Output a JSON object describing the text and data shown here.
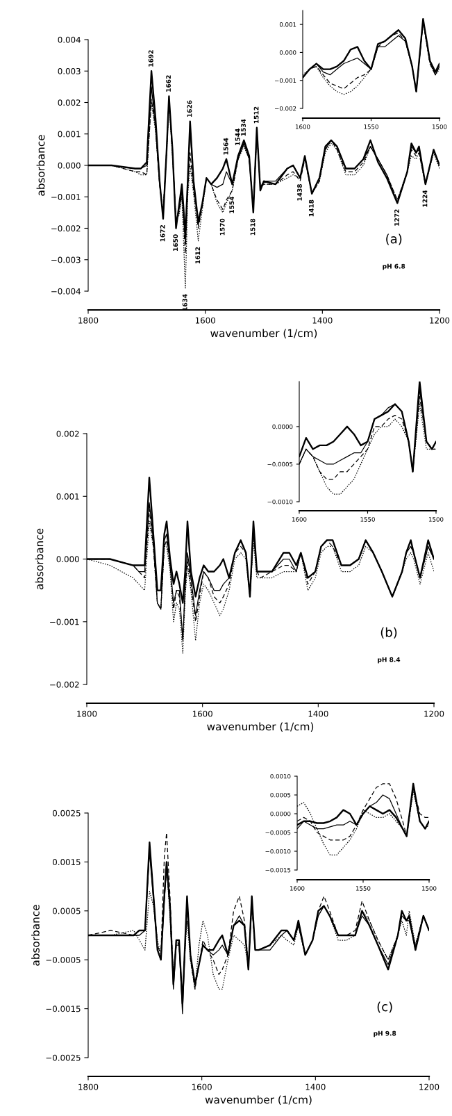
{
  "chart_data": [
    {
      "type": "line",
      "xlabel": "wavenumber (1/cm)",
      "ylabel": "absorbance",
      "xlim": [
        1800,
        1200
      ],
      "xticks": [
        1800,
        1600,
        1400,
        1200
      ],
      "ylim": [
        -0.004,
        0.004
      ],
      "yticks": [
        {
          "value": 0.004,
          "label": "0.004"
        },
        {
          "value": 0.003,
          "label": "0.003"
        },
        {
          "value": 0.002,
          "label": "0.002"
        },
        {
          "value": 0.001,
          "label": "0.001"
        },
        {
          "value": 0,
          "label": "0.000"
        },
        {
          "value": -0.001,
          "label": "−0.001"
        },
        {
          "value": -0.002,
          "label": "−0.002"
        },
        {
          "value": -0.003,
          "label": "−0.003"
        },
        {
          "value": -0.004,
          "label": "−0.004"
        }
      ],
      "x": [
        1800,
        1760,
        1720,
        1710,
        1700,
        1692,
        1685,
        1678,
        1672,
        1666,
        1662,
        1656,
        1650,
        1645,
        1640,
        1634,
        1630,
        1626,
        1620,
        1612,
        1605,
        1598,
        1590,
        1580,
        1570,
        1564,
        1554,
        1544,
        1534,
        1525,
        1518,
        1512,
        1506,
        1500,
        1480,
        1460,
        1450,
        1438,
        1430,
        1418,
        1405,
        1395,
        1385,
        1375,
        1360,
        1345,
        1330,
        1318,
        1305,
        1290,
        1272,
        1255,
        1248,
        1240,
        1235,
        1224,
        1210,
        1200
      ],
      "series": [
        {
          "color": "#000000",
          "line_style": "solid",
          "values": [
            0,
            0,
            -0.0001,
            -0.0001,
            0.0001,
            0.003,
            0.0015,
            -0.0005,
            -0.0017,
            0.0005,
            0.0022,
            0.0005,
            -0.002,
            -0.0013,
            -0.0006,
            -0.0022,
            -0.0005,
            0.0014,
            -0.0005,
            -0.0018,
            -0.0012,
            -0.0004,
            -0.0006,
            -0.0004,
            -0.0001,
            0.0002,
            -0.0006,
            0.0003,
            0.0008,
            0.0003,
            -0.0015,
            0.0012,
            -0.0008,
            -0.0005,
            -0.0006,
            -0.0001,
            0,
            -0.0004,
            0.0003,
            -0.0009,
            -0.0004,
            0.0006,
            0.0008,
            0.0006,
            -0.0001,
            -0.0001,
            0.0002,
            0.0008,
            0.0001,
            -0.0004,
            -0.0012,
            -0.0002,
            0.0007,
            0.0004,
            0.0006,
            -0.0006,
            0.0005,
            0
          ]
        },
        {
          "color": "#000000",
          "line_style": "solid",
          "values": [
            0,
            0,
            -0.0001,
            -0.0001,
            0,
            0.0025,
            0.0012,
            -0.0006,
            -0.0016,
            0.0005,
            0.0021,
            0.0004,
            -0.0018,
            -0.0014,
            -0.0008,
            -0.0025,
            -0.0006,
            0.0012,
            -0.0006,
            -0.0019,
            -0.0012,
            -0.0004,
            -0.0006,
            -0.0007,
            -0.0006,
            -0.0002,
            -0.0006,
            0.0002,
            0.0007,
            0.0002,
            -0.0014,
            0.0011,
            -0.0007,
            -0.0005,
            -0.0005,
            -0.0001,
            0,
            -0.0004,
            0.0003,
            -0.0009,
            -0.0004,
            0.0005,
            0.0008,
            0.0006,
            -0.0001,
            -0.0001,
            0.0002,
            0.0006,
            0.0002,
            -0.0003,
            -0.0012,
            -0.0002,
            0.0006,
            0.0004,
            0.0005,
            -0.0006,
            0.0005,
            0
          ]
        },
        {
          "color": "#000000",
          "line_style": "dashed",
          "values": [
            0,
            0,
            -0.0002,
            -0.0002,
            -0.0003,
            0.0021,
            0.0012,
            -0.0006,
            -0.0015,
            0.0005,
            0.0021,
            0.0004,
            -0.0018,
            -0.0015,
            -0.0009,
            -0.0028,
            -0.0008,
            0.0004,
            -0.0008,
            -0.002,
            -0.0013,
            -0.0004,
            -0.0006,
            -0.0011,
            -0.0014,
            -0.0011,
            -0.0008,
            0.0002,
            0.0007,
            0.0002,
            -0.0014,
            0.0011,
            -0.0007,
            -0.0006,
            -0.0006,
            -0.0003,
            -0.0002,
            -0.0005,
            0.0002,
            -0.0009,
            -0.0005,
            0.0005,
            0.0008,
            0.0005,
            -0.0002,
            -0.0002,
            0.0001,
            0.0006,
            0.0002,
            -0.0003,
            -0.0011,
            -0.0002,
            0.0005,
            0.0003,
            0.0004,
            -0.0006,
            0.0005,
            0
          ]
        },
        {
          "color": "#000000",
          "line_style": "dotted",
          "values": [
            0,
            0,
            -0.0002,
            -0.0003,
            -0.0003,
            0.002,
            0.0011,
            -0.0006,
            -0.0015,
            0.0004,
            0.002,
            0.0003,
            -0.0017,
            -0.0016,
            -0.001,
            -0.0039,
            -0.001,
            0,
            -0.0009,
            -0.0024,
            -0.0014,
            -0.0004,
            -0.0006,
            -0.0012,
            -0.0015,
            -0.0012,
            -0.0008,
            0.0002,
            0.0006,
            0.0002,
            -0.0014,
            0.001,
            -0.0007,
            -0.0006,
            -0.0006,
            -0.0004,
            -0.0003,
            -0.0004,
            0.0002,
            -0.0009,
            -0.0005,
            0.0004,
            0.0007,
            0.0005,
            -0.0003,
            -0.0003,
            0,
            0.0006,
            0.0002,
            -0.0003,
            -0.0011,
            -0.0002,
            0.0003,
            0.0002,
            0.0004,
            -0.0006,
            0.0004,
            -0.0001
          ]
        }
      ],
      "annotations": [
        {
          "text": "1692",
          "x": 1692,
          "y": 0.003
        },
        {
          "text": "1662",
          "x": 1662,
          "y": 0.0022
        },
        {
          "text": "1626",
          "x": 1626,
          "y": 0.0014
        },
        {
          "text": "1564",
          "x": 1564,
          "y": 0.0002
        },
        {
          "text": "1544",
          "x": 1544,
          "y": 0.0005
        },
        {
          "text": "1534",
          "x": 1534,
          "y": 0.0008
        },
        {
          "text": "1512",
          "x": 1512,
          "y": 0.0012
        },
        {
          "text": "1672",
          "x": 1672,
          "y": -0.0017
        },
        {
          "text": "1650",
          "x": 1650,
          "y": -0.002
        },
        {
          "text": "1634",
          "x": 1634,
          "y": -0.0039
        },
        {
          "text": "1612",
          "x": 1612,
          "y": -0.0024
        },
        {
          "text": "1570",
          "x": 1570,
          "y": -0.0015
        },
        {
          "text": "1554",
          "x": 1554,
          "y": -0.0008
        },
        {
          "text": "1518",
          "x": 1518,
          "y": -0.0015
        },
        {
          "text": "1438",
          "x": 1438,
          "y": -0.0004
        },
        {
          "text": "1418",
          "x": 1418,
          "y": -0.0009
        },
        {
          "text": "1272",
          "x": 1272,
          "y": -0.0012
        },
        {
          "text": "1224",
          "x": 1224,
          "y": -0.0006
        },
        "(a)",
        "pH 6.8"
      ]
    },
    {
      "type": "line",
      "xlim": [
        1600,
        1500
      ],
      "xticks": [
        1600,
        1550,
        1500
      ],
      "ylim": [
        -0.002,
        0.0015
      ],
      "yticks": [
        {
          "value": 0.001,
          "label": "0.001"
        },
        {
          "value": 0,
          "label": "0.000"
        },
        {
          "value": -0.001,
          "label": "−0.001"
        },
        {
          "value": -0.002,
          "label": "−0.002"
        }
      ],
      "x": [
        1600,
        1595,
        1590,
        1585,
        1580,
        1575,
        1570,
        1565,
        1560,
        1555,
        1550,
        1545,
        1540,
        1535,
        1530,
        1525,
        1520,
        1517,
        1512,
        1507,
        1503,
        1500
      ],
      "series": [
        {
          "color": "#000000",
          "line_style": "solid",
          "values": [
            -0.0009,
            -0.0006,
            -0.0004,
            -0.0006,
            -0.0006,
            -0.0005,
            -0.0003,
            0.0001,
            0.0002,
            -0.0003,
            -0.0006,
            0.0003,
            0.0004,
            0.0006,
            0.0008,
            0.0005,
            -0.0005,
            -0.0014,
            0.0012,
            -0.0003,
            -0.0007,
            -0.0004
          ]
        },
        {
          "color": "#000000",
          "line_style": "solid",
          "values": [
            -0.0009,
            -0.0006,
            -0.0004,
            -0.0007,
            -0.0008,
            -0.0006,
            -0.0004,
            -0.0003,
            -0.0002,
            -0.0004,
            -0.0006,
            0.0002,
            0.0002,
            0.0004,
            0.0006,
            0.0004,
            -0.0005,
            -0.0014,
            0.0011,
            -0.0003,
            -0.0008,
            -0.0005
          ]
        },
        {
          "color": "#000000",
          "line_style": "dashed",
          "values": [
            -0.0009,
            -0.0006,
            -0.0005,
            -0.0008,
            -0.0011,
            -0.0012,
            -0.0013,
            -0.0011,
            -0.0009,
            -0.0008,
            -0.0006,
            0.0002,
            0.0004,
            0.0006,
            0.0007,
            0.0004,
            -0.0005,
            -0.0014,
            0.0011,
            -0.0004,
            -0.0008,
            -0.0005
          ]
        },
        {
          "color": "#000000",
          "line_style": "dotted",
          "values": [
            -0.0008,
            -0.0006,
            -0.0005,
            -0.0009,
            -0.0012,
            -0.0014,
            -0.0015,
            -0.0014,
            -0.0012,
            -0.0009,
            -0.0006,
            0.0003,
            0.0004,
            0.0006,
            0.0008,
            0.0005,
            -0.0005,
            -0.0014,
            0.0011,
            -0.0004,
            -0.0008,
            -0.0006
          ]
        }
      ]
    },
    {
      "type": "line",
      "xlabel": "wavenumber (1/cm)",
      "ylabel": "absorbance",
      "xlim": [
        1800,
        1200
      ],
      "xticks": [
        1800,
        1600,
        1400,
        1200
      ],
      "ylim": [
        -0.002,
        0.002
      ],
      "yticks": [
        {
          "value": 0.002,
          "label": "0.002"
        },
        {
          "value": 0.001,
          "label": "0.001"
        },
        {
          "value": 0,
          "label": "0.000"
        },
        {
          "value": -0.001,
          "label": "−0.001"
        },
        {
          "value": -0.002,
          "label": "−0.002"
        }
      ],
      "x": [
        1800,
        1760,
        1720,
        1710,
        1700,
        1692,
        1685,
        1678,
        1672,
        1666,
        1662,
        1656,
        1650,
        1645,
        1640,
        1634,
        1630,
        1626,
        1620,
        1612,
        1605,
        1598,
        1590,
        1580,
        1570,
        1564,
        1554,
        1544,
        1534,
        1525,
        1518,
        1512,
        1506,
        1500,
        1480,
        1460,
        1450,
        1438,
        1430,
        1418,
        1405,
        1395,
        1385,
        1375,
        1360,
        1345,
        1330,
        1318,
        1305,
        1290,
        1272,
        1255,
        1248,
        1240,
        1235,
        1224,
        1210,
        1200
      ],
      "series": [
        {
          "color": "#000000",
          "line_style": "solid",
          "values": [
            0,
            0,
            -0.0001,
            -0.0001,
            -0.0001,
            0.0013,
            0.0004,
            -0.0005,
            -0.0005,
            0.0004,
            0.0006,
            0,
            -0.0004,
            -0.0002,
            -0.0004,
            -0.0007,
            -0.0002,
            0.0006,
            -0.0002,
            -0.0006,
            -0.0003,
            -0.0001,
            -0.0002,
            -0.0002,
            -0.0001,
            0,
            -0.0003,
            0.0001,
            0.0003,
            0.0001,
            -0.0006,
            0.0006,
            -0.0002,
            -0.0002,
            -0.0002,
            0.0001,
            0.0001,
            -0.0001,
            0.0001,
            -0.0003,
            -0.0002,
            0.0002,
            0.0003,
            0.0003,
            -0.0001,
            -0.0001,
            0,
            0.0003,
            0.0001,
            -0.0002,
            -0.0006,
            -0.0002,
            0.0001,
            0.0003,
            0.0001,
            -0.0003,
            0.0003,
            0
          ]
        },
        {
          "color": "#000000",
          "line_style": "solid",
          "values": [
            0,
            0,
            -0.0001,
            -0.0002,
            -0.0002,
            0.0009,
            0.0003,
            -0.0007,
            -0.0008,
            0.0003,
            0.0004,
            -0.0001,
            -0.0007,
            -0.0005,
            -0.0005,
            -0.0013,
            -0.0004,
            0.0001,
            -0.0003,
            -0.0009,
            -0.0005,
            -0.0002,
            -0.0003,
            -0.0005,
            -0.0005,
            -0.0004,
            -0.0003,
            0.0001,
            0.0003,
            0.0001,
            -0.0006,
            0.0005,
            -0.0002,
            -0.0002,
            -0.0002,
            0,
            0,
            -0.0002,
            0.0001,
            -0.0003,
            -0.0002,
            0.0002,
            0.0003,
            0.0003,
            -0.0001,
            -0.0001,
            0,
            0.0003,
            0.0001,
            -0.0002,
            -0.0006,
            -0.0002,
            0.0001,
            0.0002,
            0.0001,
            -0.0003,
            0.0002,
            0
          ]
        },
        {
          "color": "#000000",
          "line_style": "dashed",
          "values": [
            0,
            0,
            -0.0001,
            -0.0002,
            -0.0003,
            0.0008,
            0.0002,
            -0.0007,
            -0.0008,
            0.0002,
            0.0003,
            -0.0001,
            -0.0008,
            -0.0005,
            -0.0006,
            -0.0013,
            -0.0005,
            0,
            -0.0004,
            -0.001,
            -0.0006,
            -0.0002,
            -0.0003,
            -0.0006,
            -0.0007,
            -0.0006,
            -0.0004,
            0.0001,
            0.0002,
            0.0001,
            -0.0006,
            0.0004,
            -0.0002,
            -0.0003,
            -0.0002,
            -0.0001,
            -0.0001,
            -0.0002,
            0.0001,
            -0.0004,
            -0.0002,
            0.0002,
            0.0003,
            0.0002,
            -0.0001,
            -0.0001,
            0,
            0.0003,
            0.0001,
            -0.0002,
            -0.0006,
            -0.0002,
            0.0001,
            0.0002,
            0.0001,
            -0.0003,
            0.0002,
            0
          ]
        },
        {
          "color": "#000000",
          "line_style": "dotted",
          "values": [
            0,
            -0.0001,
            -0.0003,
            -0.0004,
            -0.0005,
            0.0006,
            0.0002,
            -0.0007,
            -0.0008,
            0.0002,
            0.0002,
            -0.0002,
            -0.001,
            -0.0007,
            -0.0008,
            -0.0015,
            -0.0006,
            -0.0001,
            -0.0005,
            -0.0013,
            -0.0007,
            -0.0004,
            -0.0005,
            -0.0007,
            -0.0009,
            -0.0008,
            -0.0005,
            0,
            0.0001,
            0,
            -0.0006,
            0.0003,
            -0.0003,
            -0.0003,
            -0.0003,
            -0.0002,
            -0.0002,
            -0.0002,
            0.0001,
            -0.0005,
            -0.0003,
            0.0001,
            0.0002,
            0.0002,
            -0.0002,
            -0.0002,
            -0.0001,
            0.0002,
            0.0001,
            -0.0002,
            -0.0006,
            -0.0002,
            0,
            0.0001,
            0,
            -0.0004,
            0.0001,
            -0.0002
          ]
        }
      ],
      "annotations": [
        "(b)",
        "pH 8.4"
      ]
    },
    {
      "type": "line",
      "xlim": [
        1600,
        1500
      ],
      "xticks": [
        1600,
        1550,
        1500
      ],
      "ylim": [
        -0.001,
        0.0006
      ],
      "yticks": [
        {
          "value": 0,
          "label": "0.0000"
        },
        {
          "value": -0.0005,
          "label": "−0.0005"
        },
        {
          "value": -0.001,
          "label": "−0.0010"
        }
      ],
      "x": [
        1600,
        1595,
        1590,
        1585,
        1580,
        1575,
        1570,
        1565,
        1560,
        1555,
        1550,
        1545,
        1540,
        1535,
        1530,
        1525,
        1520,
        1517,
        1512,
        1507,
        1503,
        1500
      ],
      "series": [
        {
          "color": "#000000",
          "line_style": "solid",
          "values": [
            -0.0004,
            -0.00015,
            -0.0003,
            -0.00025,
            -0.00025,
            -0.0002,
            -0.0001,
            0,
            -0.0001,
            -0.00025,
            -0.0002,
            0.0001,
            0.00015,
            0.0002,
            0.0003,
            0.0002,
            -0.0002,
            -0.0006,
            0.0006,
            -0.0002,
            -0.0003,
            -0.0002
          ]
        },
        {
          "color": "#000000",
          "line_style": "solid",
          "values": [
            -0.0005,
            -0.0003,
            -0.0004,
            -0.00045,
            -0.0005,
            -0.0005,
            -0.00045,
            -0.0004,
            -0.00035,
            -0.00035,
            -0.0002,
            0.0001,
            0.00015,
            0.00025,
            0.0003,
            0.0002,
            -0.0002,
            -0.0006,
            0.0005,
            -0.0002,
            -0.0003,
            -0.0002
          ]
        },
        {
          "color": "#000000",
          "line_style": "dashed",
          "values": [
            -0.0005,
            -0.0003,
            -0.0004,
            -0.0006,
            -0.0007,
            -0.0007,
            -0.0006,
            -0.0006,
            -0.0005,
            -0.0004,
            -0.0003,
            0,
            0,
            0.0001,
            0.00015,
            0.0001,
            -0.0002,
            -0.0006,
            0.0004,
            -0.0002,
            -0.0003,
            -0.0003
          ]
        },
        {
          "color": "#000000",
          "line_style": "dotted",
          "values": [
            -0.0005,
            -0.0003,
            -0.0004,
            -0.0006,
            -0.0008,
            -0.0009,
            -0.0009,
            -0.0008,
            -0.0007,
            -0.0005,
            -0.0003,
            -0.0001,
            0,
            0,
            0.0001,
            0,
            -0.0002,
            -0.0006,
            0.0003,
            -0.0003,
            -0.0003,
            -0.0003
          ]
        }
      ]
    },
    {
      "type": "line",
      "xlabel": "wavenumber (1/cm)",
      "ylabel": "absorbance",
      "xlim": [
        1800,
        1200
      ],
      "xticks": [
        1800,
        1600,
        1400,
        1200
      ],
      "ylim": [
        -0.0025,
        0.0025
      ],
      "yticks": [
        {
          "value": 0.0025,
          "label": "0.0025"
        },
        {
          "value": 0.0015,
          "label": "0.0015"
        },
        {
          "value": 0.0005,
          "label": "0.0005"
        },
        {
          "value": -0.0005,
          "label": "−0.0005"
        },
        {
          "value": -0.0015,
          "label": "−0.0015"
        },
        {
          "value": -0.0025,
          "label": "−0.0025"
        }
      ],
      "x": [
        1800,
        1760,
        1720,
        1710,
        1700,
        1692,
        1685,
        1678,
        1672,
        1666,
        1662,
        1656,
        1650,
        1645,
        1640,
        1634,
        1630,
        1626,
        1620,
        1612,
        1605,
        1598,
        1590,
        1580,
        1570,
        1564,
        1554,
        1544,
        1534,
        1525,
        1518,
        1512,
        1506,
        1500,
        1480,
        1460,
        1450,
        1438,
        1430,
        1418,
        1405,
        1395,
        1385,
        1375,
        1360,
        1345,
        1330,
        1318,
        1305,
        1290,
        1272,
        1255,
        1248,
        1240,
        1235,
        1224,
        1210,
        1200
      ],
      "series": [
        {
          "color": "#000000",
          "line_style": "solid",
          "values": [
            0,
            0,
            0,
            0.0001,
            0.0001,
            0.0019,
            0.0008,
            -0.0003,
            -0.0005,
            0.0008,
            0.0015,
            0.0006,
            -0.001,
            -0.0001,
            -0.0001,
            -0.0014,
            -0.0003,
            0.0008,
            -0.0004,
            -0.001,
            -0.0006,
            -0.0002,
            -0.0003,
            -0.0003,
            -0.0001,
            0,
            -0.0004,
            0.0002,
            0.0003,
            0.0002,
            -0.0007,
            0.0008,
            -0.0003,
            -0.0003,
            -0.0002,
            0.0001,
            0.0001,
            -0.0001,
            0.0003,
            -0.0004,
            -0.0001,
            0.0005,
            0.0006,
            0.0004,
            0,
            0,
            0,
            0.0005,
            0.0002,
            -0.0002,
            -0.0007,
            0,
            0.0005,
            0.0003,
            0.0004,
            -0.0003,
            0.0004,
            0.0001
          ]
        },
        {
          "color": "#000000",
          "line_style": "solid",
          "values": [
            0,
            0,
            0,
            0,
            0.0001,
            0.0017,
            0.0007,
            -0.0003,
            -0.0005,
            0.0007,
            0.0014,
            0.0005,
            -0.0011,
            -0.0002,
            -0.0002,
            -0.0016,
            -0.0004,
            0.0006,
            -0.0004,
            -0.001,
            -0.0006,
            -0.0002,
            -0.0003,
            -0.0004,
            -0.0003,
            -0.0002,
            -0.0004,
            0.0002,
            0.0004,
            0.0002,
            -0.0007,
            0.0007,
            -0.0003,
            -0.0003,
            -0.0003,
            0,
            0.0001,
            -0.0001,
            0.0002,
            -0.0004,
            -0.0001,
            0.0004,
            0.0006,
            0.0004,
            0,
            0,
            0,
            0.0004,
            0.0002,
            -0.0002,
            -0.0006,
            0,
            0.0004,
            0.0003,
            0.0003,
            -0.0003,
            0.0004,
            0.0001
          ]
        },
        {
          "color": "#000000",
          "line_style": "dashed",
          "values": [
            0,
            0.0001,
            0,
            0.0001,
            0.0001,
            0.0018,
            0.0008,
            -0.0002,
            -0.0004,
            0.0016,
            0.0021,
            0.0008,
            -0.0009,
            -0.0001,
            -0.0002,
            -0.0013,
            -0.0003,
            0.0006,
            -0.0005,
            -0.0011,
            -0.0006,
            -0.0001,
            -0.0003,
            -0.0005,
            -0.0008,
            -0.0007,
            -0.0004,
            0.0005,
            0.0008,
            0.0003,
            -0.0006,
            0.0006,
            -0.0003,
            -0.0003,
            -0.0002,
            0.0001,
            0.0001,
            -0.0001,
            0.0002,
            -0.0004,
            -0.0001,
            0.0005,
            0.0008,
            0.0005,
            0,
            0,
            0.0001,
            0.0007,
            0.0003,
            -0.0001,
            -0.0005,
            0,
            0.0004,
            0.0003,
            0.0003,
            -0.0002,
            0.0004,
            0.0001
          ]
        },
        {
          "color": "#000000",
          "line_style": "dotted",
          "values": [
            0,
            0,
            0.0001,
            -0.0001,
            -0.0003,
            0.0009,
            0.0006,
            -0.0001,
            -0.0004,
            0.0008,
            0.0014,
            0.0004,
            -0.0009,
            -0.0002,
            -0.0002,
            -0.0013,
            -0.0004,
            0.0003,
            -0.0005,
            -0.0011,
            -0.0002,
            0.0003,
            0,
            -0.0008,
            -0.0011,
            -0.0011,
            -0.0005,
            0,
            -0.0001,
            -0.0002,
            -0.0006,
            0.0007,
            -0.0003,
            -0.0003,
            -0.0002,
            0,
            -0.0001,
            -0.0002,
            0.0002,
            -0.0004,
            -0.0001,
            0.0004,
            0.0006,
            0.0004,
            -0.0001,
            -0.0001,
            0,
            0.0005,
            0.0003,
            -0.0001,
            -0.0005,
            0,
            0.0003,
            0,
            0.0005,
            -0.0002,
            0.0004,
            0.0001
          ]
        }
      ],
      "annotations": [
        "(c)",
        "pH 9.8"
      ]
    },
    {
      "type": "line",
      "xlim": [
        1600,
        1500
      ],
      "xticks": [
        1600,
        1550,
        1500
      ],
      "ylim": [
        -0.0015,
        0.001
      ],
      "yticks": [
        {
          "value": 0.001,
          "label": "0.0010"
        },
        {
          "value": 0.0005,
          "label": "0.0005"
        },
        {
          "value": 0,
          "label": "0.0000"
        },
        {
          "value": -0.0005,
          "label": "−0.0005"
        },
        {
          "value": -0.001,
          "label": "−0.0010"
        },
        {
          "value": -0.0015,
          "label": "−0.0015"
        }
      ],
      "x": [
        1600,
        1595,
        1590,
        1585,
        1580,
        1575,
        1570,
        1565,
        1560,
        1555,
        1550,
        1545,
        1540,
        1535,
        1530,
        1525,
        1520,
        1517,
        1512,
        1507,
        1503,
        1500
      ],
      "series": [
        {
          "color": "#000000",
          "line_style": "solid",
          "values": [
            -0.0003,
            -0.0002,
            -0.0002,
            -0.00025,
            -0.00025,
            -0.0002,
            -0.0001,
            0.0001,
            0,
            -0.0003,
            0,
            0.0002,
            0.0001,
            0,
            0.0001,
            -0.0001,
            -0.0004,
            -0.0006,
            0.0008,
            -0.0002,
            -0.0004,
            -0.0002
          ]
        },
        {
          "color": "#000000",
          "line_style": "solid",
          "values": [
            -0.0004,
            -0.0002,
            -0.0003,
            -0.0004,
            -0.0004,
            -0.00035,
            -0.0003,
            -0.0003,
            -0.0002,
            -0.0003,
            0,
            0.0002,
            0.0003,
            0.0005,
            0.0004,
            0,
            -0.0004,
            -0.0006,
            0.0007,
            -0.0002,
            -0.0004,
            -0.0002
          ]
        },
        {
          "color": "#000000",
          "line_style": "dashed",
          "values": [
            -0.0002,
            -0.0001,
            -0.0002,
            -0.0005,
            -0.0006,
            -0.0007,
            -0.0007,
            -0.0007,
            -0.0006,
            -0.0003,
            0.0001,
            0.0004,
            0.0007,
            0.0008,
            0.0008,
            0.0004,
            -0.0002,
            -0.0006,
            0.0007,
            0,
            -0.0001,
            -0.0001
          ]
        },
        {
          "color": "#000000",
          "line_style": "dotted",
          "values": [
            0.0002,
            0.0003,
            0,
            -0.0004,
            -0.0008,
            -0.0011,
            -0.0011,
            -0.0009,
            -0.0007,
            -0.0004,
            0.0001,
            0,
            -0.0001,
            -0.0001,
            0,
            -0.0002,
            -0.0004,
            -0.0006,
            0.0006,
            -0.0002,
            -0.0004,
            -0.0003
          ]
        }
      ]
    }
  ]
}
